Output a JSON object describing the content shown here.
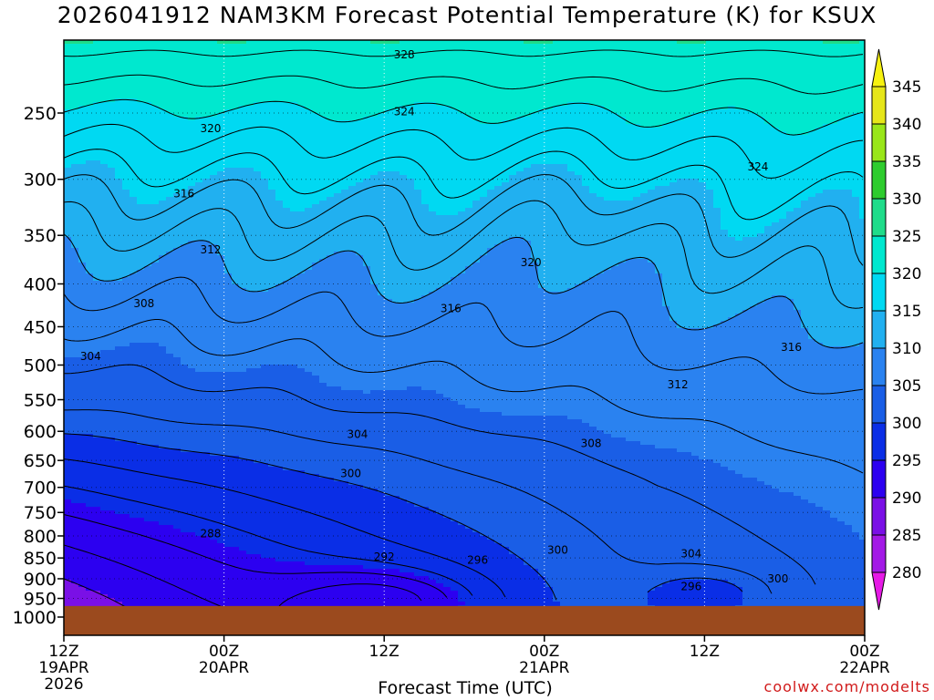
{
  "title": "2026041912 NAM3KM Forecast Potential Temperature (K) for KSUX",
  "xlabel": "Forecast Time (UTC)",
  "credit": "coolwx.com/modelts",
  "chart_data": {
    "type": "contour",
    "title": "2026041912 NAM3KM Forecast Potential Temperature (K) for KSUX",
    "xlabel": "Forecast Time (UTC)",
    "ylabel": "",
    "y_scale": "log",
    "y_inverted": true,
    "x_range_hours": [
      0,
      60
    ],
    "y_range_hpa": [
      1000,
      200
    ],
    "x_ticks": [
      {
        "hour": 0,
        "label": [
          "12Z",
          "19APR",
          "2026"
        ]
      },
      {
        "hour": 12,
        "label": [
          "00Z",
          "20APR"
        ]
      },
      {
        "hour": 24,
        "label": [
          "12Z"
        ]
      },
      {
        "hour": 36,
        "label": [
          "00Z",
          "21APR"
        ]
      },
      {
        "hour": 48,
        "label": [
          "12Z"
        ]
      },
      {
        "hour": 60,
        "label": [
          "00Z",
          "22APR"
        ]
      }
    ],
    "y_ticks": [
      250,
      300,
      350,
      400,
      450,
      500,
      550,
      600,
      650,
      700,
      750,
      800,
      850,
      900,
      950,
      1000
    ],
    "grid": true,
    "colorbar": {
      "levels": [
        280,
        285,
        290,
        295,
        300,
        305,
        310,
        315,
        320,
        325,
        330,
        335,
        340,
        345
      ],
      "colors": [
        "#e61ae6",
        "#a31ae6",
        "#7a10e6",
        "#2c00f0",
        "#0a2ee6",
        "#1a5ee6",
        "#2a82f0",
        "#21b0f0",
        "#00d9f2",
        "#00e8cf",
        "#1fdc8a",
        "#2ecc2e",
        "#99e619",
        "#e6e619",
        "#f7f210"
      ]
    },
    "contour_interval_K": 2,
    "labeled_contours": [
      {
        "value": 328,
        "hour": 25.5,
        "p": 213
      },
      {
        "value": 324,
        "hour": 25.5,
        "p": 249
      },
      {
        "value": 324,
        "hour": 52,
        "p": 290
      },
      {
        "value": 320,
        "hour": 11,
        "p": 261
      },
      {
        "value": 320,
        "hour": 35,
        "p": 377
      },
      {
        "value": 316,
        "hour": 9,
        "p": 312
      },
      {
        "value": 316,
        "hour": 29,
        "p": 428
      },
      {
        "value": 316,
        "hour": 54.5,
        "p": 476
      },
      {
        "value": 312,
        "hour": 11,
        "p": 364
      },
      {
        "value": 312,
        "hour": 46,
        "p": 528
      },
      {
        "value": 308,
        "hour": 6,
        "p": 422
      },
      {
        "value": 308,
        "hour": 39.5,
        "p": 620
      },
      {
        "value": 304,
        "hour": 2,
        "p": 488
      },
      {
        "value": 304,
        "hour": 22,
        "p": 605
      },
      {
        "value": 304,
        "hour": 47,
        "p": 840
      },
      {
        "value": 300,
        "hour": 21.5,
        "p": 674
      },
      {
        "value": 300,
        "hour": 37,
        "p": 832
      },
      {
        "value": 300,
        "hour": 53.5,
        "p": 900
      },
      {
        "value": 296,
        "hour": 31,
        "p": 855
      },
      {
        "value": 296,
        "hour": 47,
        "p": 920
      },
      {
        "value": 292,
        "hour": 24,
        "p": 847
      },
      {
        "value": 288,
        "hour": 11,
        "p": 795
      }
    ],
    "surface_pressure_hpa": 970
  }
}
